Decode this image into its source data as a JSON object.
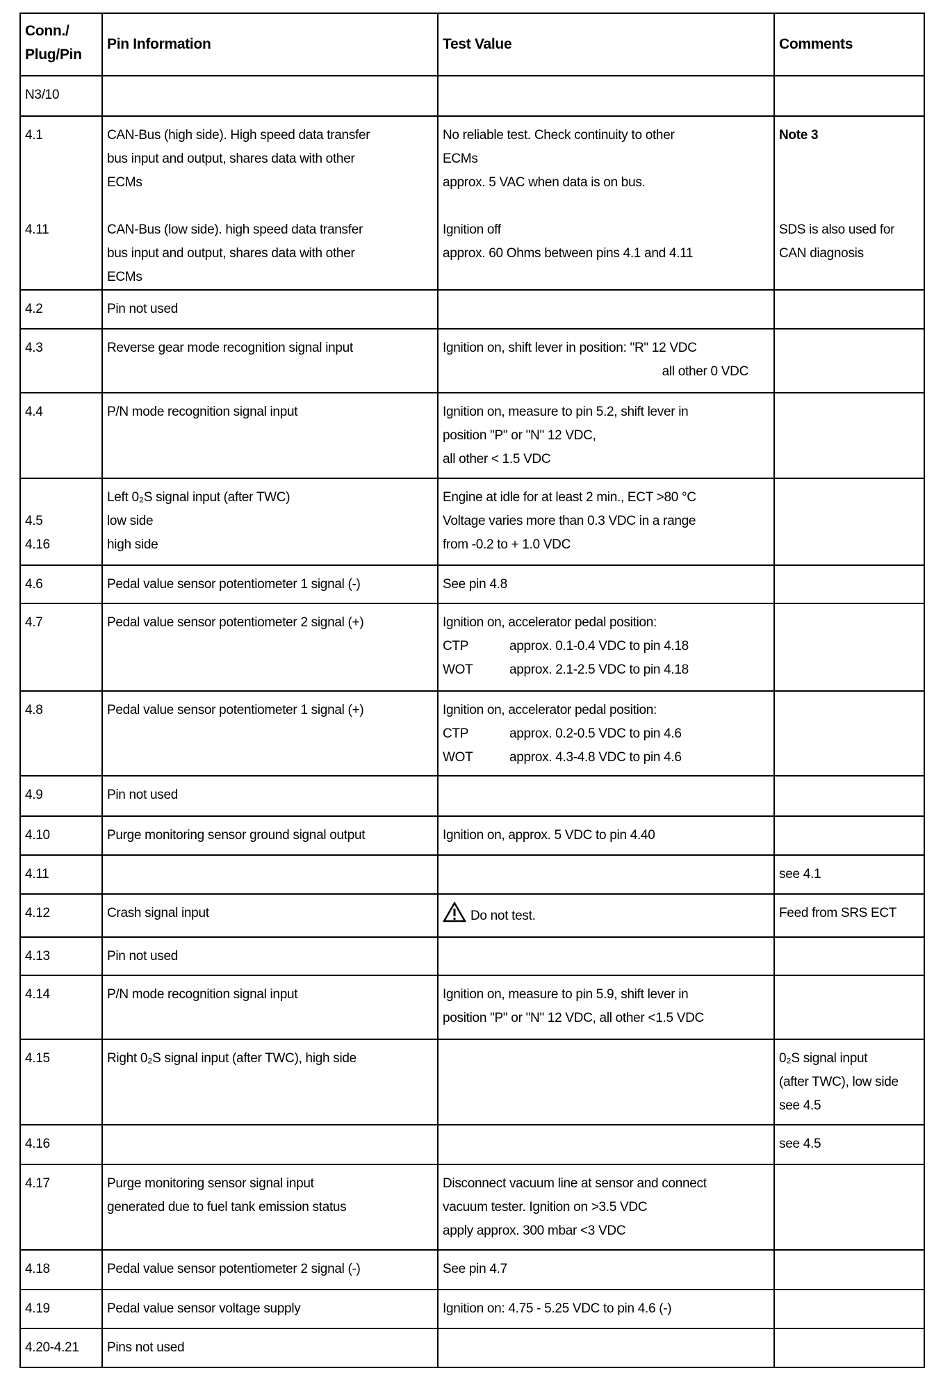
{
  "header": {
    "pin": [
      "Conn./",
      "Plug/Pin"
    ],
    "info": "Pin Information",
    "test": "Test Value",
    "comments": "Comments"
  },
  "rows": [
    {
      "pin": [
        "N3/10"
      ],
      "info": [],
      "test": [],
      "comments": []
    },
    {
      "pin": [
        "4.1",
        "",
        "",
        "",
        "4.11"
      ],
      "info": [
        "CAN-Bus (high side). High speed data transfer",
        "bus input and output, shares data with other",
        "ECMs",
        "",
        "CAN-Bus (low side). high speed data transfer",
        "bus input and output, shares data with other",
        "ECMs"
      ],
      "test": [
        "No reliable test. Check continuity to other",
        "ECMs",
        "approx. 5 VAC when data is on bus.",
        "",
        "Ignition off",
        "approx. 60 Ohms between pins 4.1 and 4.11"
      ],
      "comments": [
        "Note 3",
        "",
        "",
        "",
        "SDS is also used for",
        "CAN diagnosis"
      ],
      "comments_bold_first": true
    },
    {
      "pin": [
        "4.2"
      ],
      "info": [
        "Pin not used"
      ],
      "test": [],
      "comments": []
    },
    {
      "pin": [
        "4.3"
      ],
      "info": [
        "Reverse gear mode recognition signal input"
      ],
      "test": [
        "Ignition on, shift lever in position: \"R\" 12 VDC"
      ],
      "test_right": [
        "all other  0 VDC"
      ],
      "comments": []
    },
    {
      "pin": [
        "4.4"
      ],
      "info": [
        "P/N mode recognition signal input"
      ],
      "test": [
        "Ignition on, measure to pin 5.2, shift lever in",
        "position \"P\" or \"N\" 12 VDC,",
        "all other < 1.5 VDC"
      ],
      "comments": []
    },
    {
      "pin": [
        "",
        "4.5",
        "4.16"
      ],
      "info": [
        "Left 0₂S signal input (after TWC)",
        "low side",
        "high side"
      ],
      "test": [
        "Engine at idle for at least 2 min., ECT >80 °C",
        "Voltage varies more than 0.3 VDC in a range",
        "from -0.2 to + 1.0 VDC"
      ],
      "comments": []
    },
    {
      "pin": [
        "4.6"
      ],
      "info": [
        "Pedal value sensor potentiometer 1 signal (-)"
      ],
      "test": [
        "See pin 4.8"
      ],
      "comments": []
    },
    {
      "pin": [
        "4.7"
      ],
      "info": [
        "Pedal value sensor potentiometer 2 signal (+)"
      ],
      "test": [
        "Ignition on, accelerator pedal position:",
        "CTP\tapprox. 0.1-0.4 VDC to pin 4.18",
        "WOT\tapprox. 2.1-2.5 VDC  to pin 4.18"
      ],
      "comments": []
    },
    {
      "pin": [
        "4.8"
      ],
      "info": [
        "Pedal value sensor potentiometer 1 signal (+)"
      ],
      "test": [
        "Ignition on, accelerator pedal position:",
        "CTP\tapprox. 0.2-0.5 VDC to pin 4.6",
        "WOT\tapprox. 4.3-4.8 VDC  to pin 4.6"
      ],
      "comments": []
    },
    {
      "pin": [
        "4.9"
      ],
      "info": [
        "Pin not used"
      ],
      "test": [],
      "comments": []
    },
    {
      "pin": [
        "4.10"
      ],
      "info": [
        "Purge monitoring sensor ground signal output"
      ],
      "test": [
        "Ignition on, approx. 5 VDC to pin 4.40"
      ],
      "comments": []
    },
    {
      "pin": [
        "4.11"
      ],
      "info": [],
      "test": [],
      "comments": [
        "see 4.1"
      ]
    },
    {
      "pin": [
        "4.12"
      ],
      "info": [
        "Crash signal input"
      ],
      "test": [
        "Do not test."
      ],
      "test_icon": "warning-icon",
      "comments": [
        "Feed from SRS ECT"
      ]
    },
    {
      "pin": [
        "4.13"
      ],
      "info": [
        "Pin not used"
      ],
      "test": [],
      "comments": []
    },
    {
      "pin": [
        "4.14"
      ],
      "info": [
        "P/N mode recognition signal input"
      ],
      "test": [
        "Ignition on, measure to pin 5.9, shift lever in",
        "position \"P\" or \"N\" 12 VDC, all other <1.5 VDC"
      ],
      "comments": []
    },
    {
      "pin": [
        "4.15"
      ],
      "info": [
        "Right 0₂S signal input (after TWC), high side"
      ],
      "test": [],
      "comments": [
        "0₂S signal input",
        "(after TWC), low side",
        "see 4.5"
      ]
    },
    {
      "pin": [
        "4.16"
      ],
      "info": [],
      "test": [],
      "comments": [
        "see 4.5"
      ]
    },
    {
      "pin": [
        "4.17"
      ],
      "info": [
        "Purge monitoring sensor signal input",
        "generated due to fuel tank emission status"
      ],
      "test": [
        "Disconnect vacuum line at sensor and connect",
        "vacuum tester. Ignition on >3.5 VDC",
        "apply approx. 300 mbar <3 VDC"
      ],
      "comments": []
    },
    {
      "pin": [
        "4.18"
      ],
      "info": [
        "Pedal value sensor potentiometer 2 signal (-)"
      ],
      "test": [
        "See pin 4.7"
      ],
      "comments": []
    },
    {
      "pin": [
        "4.19"
      ],
      "info": [
        "Pedal value sensor voltage supply"
      ],
      "test": [
        "Ignition on: 4.75 - 5.25 VDC to pin 4.6 (-)"
      ],
      "comments": []
    },
    {
      "pin": [
        "4.20-4.21"
      ],
      "info": [
        "Pins not used"
      ],
      "test": [],
      "comments": []
    }
  ]
}
